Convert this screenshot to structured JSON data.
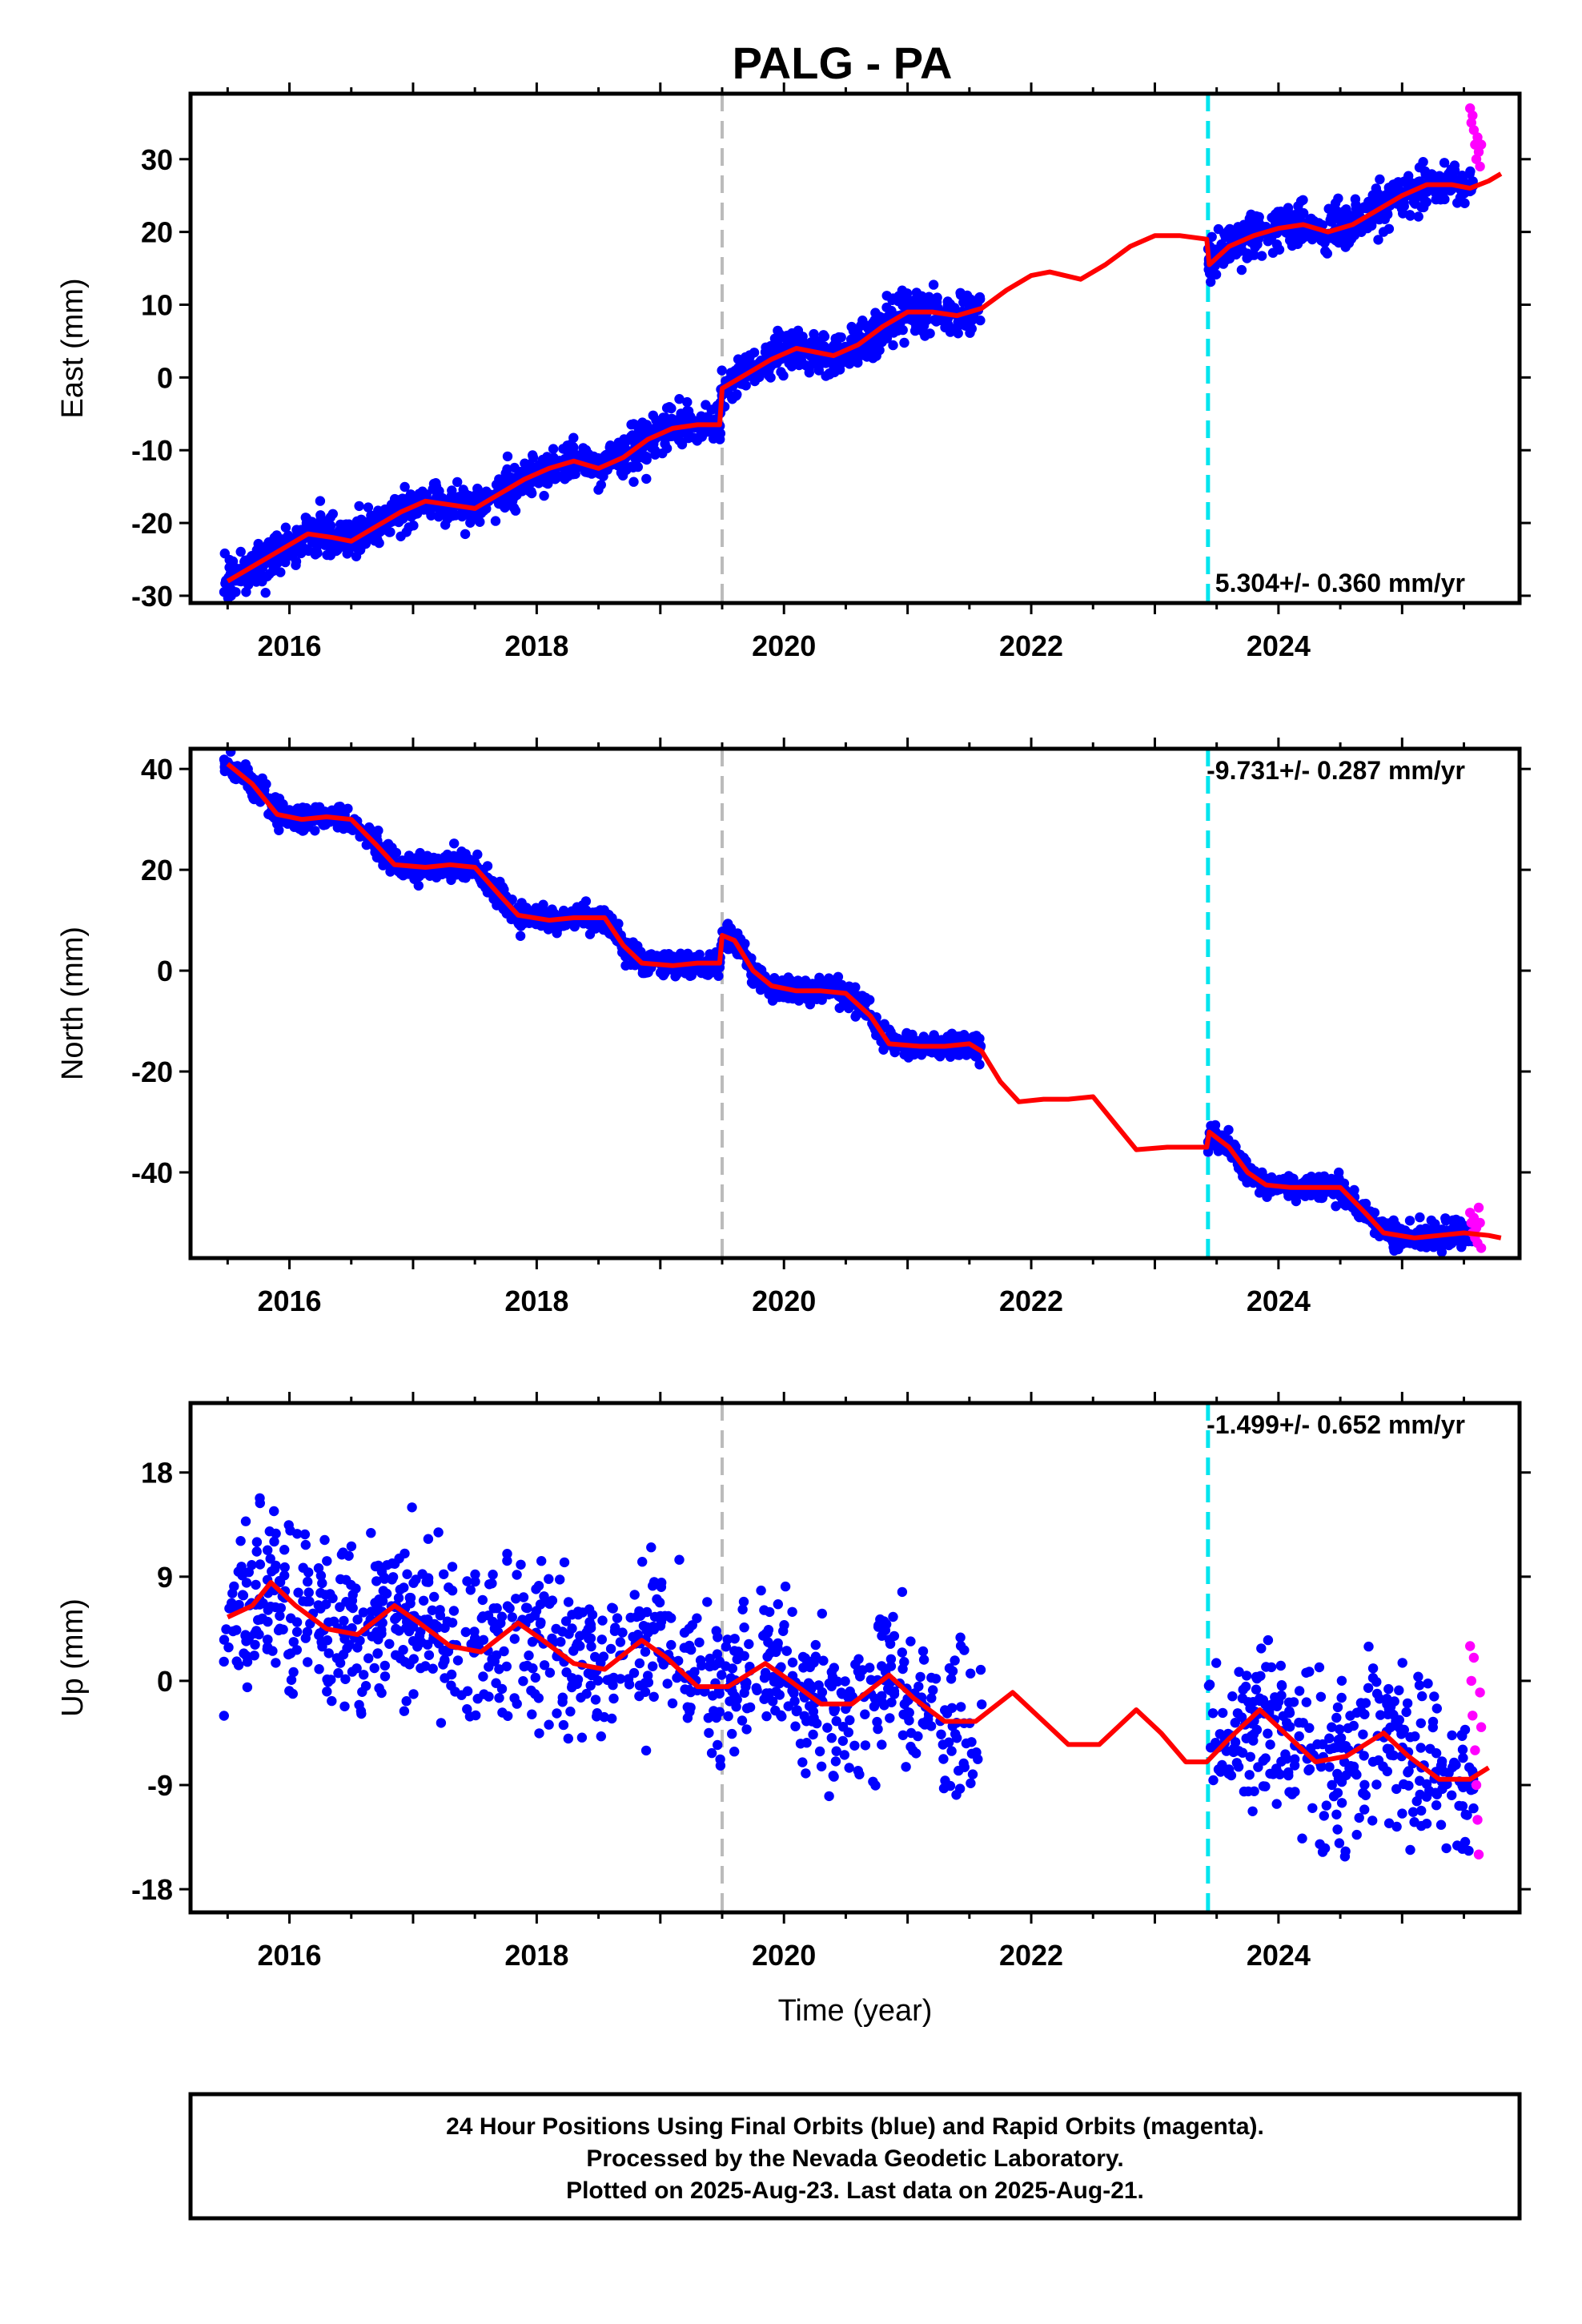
{
  "title": "PALG - PA",
  "footer": {
    "line1": "24 Hour Positions Using Final Orbits (blue) and Rapid Orbits (magenta).",
    "line2": "Processed by the Nevada Geodetic Laboratory.",
    "line3": "Plotted on 2025-Aug-23. Last data on 2025-Aug-21."
  },
  "colors": {
    "final_orbits": "#0000ff",
    "rapid_orbits": "#ff00ff",
    "model_fit": "#ff0000",
    "equipment_change": "#bbbbbb",
    "offset_event": "#00e5ee"
  },
  "chart_data": [
    {
      "type": "scatter",
      "panel": "east",
      "ylabel": "East (mm)",
      "xlabel": "",
      "xlim": [
        2015.2,
        2025.95
      ],
      "ylim": [
        -31,
        39
      ],
      "xticks": [
        2016,
        2018,
        2020,
        2022,
        2024
      ],
      "yticks": [
        -30,
        -20,
        -10,
        0,
        10,
        20,
        30
      ],
      "vlines": [
        {
          "x": 2019.5,
          "style": "gray-dashed"
        },
        {
          "x": 2023.43,
          "style": "cyan-dashed"
        }
      ],
      "rate_label": "5.304+/- 0.360 mm/yr",
      "rate_position": "bottom-right",
      "data_gap": [
        2021.6,
        2023.43
      ],
      "model": [
        [
          2015.5,
          -28
        ],
        [
          2015.75,
          -25.5
        ],
        [
          2016.0,
          -23
        ],
        [
          2016.15,
          -21.5
        ],
        [
          2016.35,
          -22
        ],
        [
          2016.5,
          -22.5
        ],
        [
          2016.7,
          -20.5
        ],
        [
          2016.9,
          -18.5
        ],
        [
          2017.1,
          -17
        ],
        [
          2017.3,
          -17.5
        ],
        [
          2017.5,
          -18
        ],
        [
          2017.7,
          -16
        ],
        [
          2017.9,
          -14
        ],
        [
          2018.1,
          -12.5
        ],
        [
          2018.3,
          -11.5
        ],
        [
          2018.5,
          -12.5
        ],
        [
          2018.7,
          -11
        ],
        [
          2018.9,
          -8.5
        ],
        [
          2019.1,
          -7
        ],
        [
          2019.3,
          -6.5
        ],
        [
          2019.48,
          -6.5
        ],
        [
          2019.5,
          -1.5
        ],
        [
          2019.7,
          0.5
        ],
        [
          2019.9,
          2.5
        ],
        [
          2020.1,
          4
        ],
        [
          2020.25,
          3.5
        ],
        [
          2020.4,
          3
        ],
        [
          2020.6,
          4.5
        ],
        [
          2020.8,
          7
        ],
        [
          2021.0,
          9
        ],
        [
          2021.2,
          9
        ],
        [
          2021.4,
          8.5
        ],
        [
          2021.6,
          9.5
        ],
        [
          2021.8,
          12
        ],
        [
          2022.0,
          14
        ],
        [
          2022.15,
          14.5
        ],
        [
          2022.4,
          13.5
        ],
        [
          2022.6,
          15.5
        ],
        [
          2022.8,
          18
        ],
        [
          2023.0,
          19.5
        ],
        [
          2023.2,
          19.5
        ],
        [
          2023.42,
          19
        ],
        [
          2023.44,
          15.5
        ],
        [
          2023.6,
          18
        ],
        [
          2023.8,
          19.5
        ],
        [
          2024.0,
          20.5
        ],
        [
          2024.2,
          21
        ],
        [
          2024.4,
          20
        ],
        [
          2024.6,
          21
        ],
        [
          2024.8,
          23
        ],
        [
          2025.0,
          25
        ],
        [
          2025.2,
          26.5
        ],
        [
          2025.4,
          26.5
        ],
        [
          2025.55,
          26
        ],
        [
          2025.7,
          27
        ],
        [
          2025.8,
          28
        ]
      ],
      "rapid_points": [
        [
          2025.55,
          37
        ],
        [
          2025.56,
          35
        ],
        [
          2025.57,
          36
        ],
        [
          2025.58,
          34
        ],
        [
          2025.59,
          32
        ],
        [
          2025.6,
          30
        ],
        [
          2025.61,
          33
        ],
        [
          2025.62,
          31
        ],
        [
          2025.63,
          29
        ],
        [
          2025.64,
          32
        ]
      ]
    },
    {
      "type": "scatter",
      "panel": "north",
      "ylabel": "North (mm)",
      "xlabel": "",
      "xlim": [
        2015.2,
        2025.95
      ],
      "ylim": [
        -57,
        44
      ],
      "xticks": [
        2016,
        2018,
        2020,
        2022,
        2024
      ],
      "yticks": [
        -40,
        -20,
        0,
        20,
        40
      ],
      "vlines": [
        {
          "x": 2019.5,
          "style": "gray-dashed"
        },
        {
          "x": 2023.43,
          "style": "cyan-dashed"
        }
      ],
      "rate_label": "-9.731+/- 0.287 mm/yr",
      "rate_position": "top-right",
      "data_gap": [
        2021.6,
        2023.43
      ],
      "model": [
        [
          2015.5,
          41
        ],
        [
          2015.7,
          37
        ],
        [
          2015.9,
          31
        ],
        [
          2016.1,
          30
        ],
        [
          2016.3,
          30.5
        ],
        [
          2016.5,
          30
        ],
        [
          2016.7,
          25
        ],
        [
          2016.85,
          21
        ],
        [
          2017.1,
          20.5
        ],
        [
          2017.3,
          21
        ],
        [
          2017.5,
          20.5
        ],
        [
          2017.7,
          15
        ],
        [
          2017.85,
          11
        ],
        [
          2018.1,
          10
        ],
        [
          2018.3,
          10.5
        ],
        [
          2018.55,
          10.5
        ],
        [
          2018.7,
          5
        ],
        [
          2018.85,
          1.5
        ],
        [
          2019.1,
          1
        ],
        [
          2019.3,
          1.5
        ],
        [
          2019.48,
          1.5
        ],
        [
          2019.5,
          7
        ],
        [
          2019.6,
          6
        ],
        [
          2019.75,
          0
        ],
        [
          2019.9,
          -3
        ],
        [
          2020.1,
          -4
        ],
        [
          2020.3,
          -4
        ],
        [
          2020.5,
          -4.5
        ],
        [
          2020.7,
          -9
        ],
        [
          2020.85,
          -14.5
        ],
        [
          2021.1,
          -15
        ],
        [
          2021.3,
          -15
        ],
        [
          2021.5,
          -14.5
        ],
        [
          2021.6,
          -16
        ],
        [
          2021.75,
          -22
        ],
        [
          2021.9,
          -26
        ],
        [
          2022.1,
          -25.5
        ],
        [
          2022.3,
          -25.5
        ],
        [
          2022.5,
          -25
        ],
        [
          2022.7,
          -31
        ],
        [
          2022.85,
          -35.5
        ],
        [
          2023.1,
          -35
        ],
        [
          2023.3,
          -35
        ],
        [
          2023.42,
          -35
        ],
        [
          2023.44,
          -32
        ],
        [
          2023.6,
          -35
        ],
        [
          2023.75,
          -40
        ],
        [
          2023.9,
          -42.5
        ],
        [
          2024.1,
          -43
        ],
        [
          2024.3,
          -43
        ],
        [
          2024.5,
          -43
        ],
        [
          2024.7,
          -48
        ],
        [
          2024.85,
          -52
        ],
        [
          2025.1,
          -53
        ],
        [
          2025.3,
          -52.5
        ],
        [
          2025.5,
          -52
        ],
        [
          2025.7,
          -52.5
        ],
        [
          2025.8,
          -53
        ]
      ],
      "rapid_points": [
        [
          2025.55,
          -48
        ],
        [
          2025.56,
          -50
        ],
        [
          2025.57,
          -52
        ],
        [
          2025.58,
          -49
        ],
        [
          2025.59,
          -53
        ],
        [
          2025.6,
          -51
        ],
        [
          2025.61,
          -54
        ],
        [
          2025.62,
          -47
        ],
        [
          2025.63,
          -50
        ],
        [
          2025.64,
          -55
        ]
      ]
    },
    {
      "type": "scatter",
      "panel": "up",
      "ylabel": "Up (mm)",
      "xlabel": "Time (year)",
      "xlim": [
        2015.2,
        2025.95
      ],
      "ylim": [
        -20,
        24
      ],
      "xticks": [
        2016,
        2018,
        2020,
        2022,
        2024
      ],
      "yticks": [
        -18,
        -9,
        0,
        9,
        18
      ],
      "vlines": [
        {
          "x": 2019.5,
          "style": "gray-dashed"
        },
        {
          "x": 2023.43,
          "style": "cyan-dashed"
        }
      ],
      "rate_label": "-1.499+/- 0.652 mm/yr",
      "rate_position": "top-right",
      "data_gap": [
        2021.6,
        2023.43
      ],
      "model": [
        [
          2015.5,
          5.5
        ],
        [
          2015.7,
          6.5
        ],
        [
          2015.85,
          8.5
        ],
        [
          2016.05,
          6.5
        ],
        [
          2016.3,
          4.5
        ],
        [
          2016.55,
          4
        ],
        [
          2016.85,
          6.5
        ],
        [
          2017.05,
          5
        ],
        [
          2017.3,
          3
        ],
        [
          2017.55,
          2.5
        ],
        [
          2017.85,
          5
        ],
        [
          2018.05,
          3.5
        ],
        [
          2018.3,
          1.5
        ],
        [
          2018.55,
          1
        ],
        [
          2018.85,
          3.5
        ],
        [
          2019.05,
          2
        ],
        [
          2019.3,
          -0.5
        ],
        [
          2019.55,
          -0.5
        ],
        [
          2019.85,
          1.5
        ],
        [
          2020.05,
          0
        ],
        [
          2020.3,
          -2
        ],
        [
          2020.55,
          -2
        ],
        [
          2020.85,
          0.5
        ],
        [
          2021.05,
          -1.5
        ],
        [
          2021.3,
          -3.5
        ],
        [
          2021.55,
          -3.5
        ],
        [
          2021.85,
          -1
        ],
        [
          2022.05,
          -3
        ],
        [
          2022.3,
          -5.5
        ],
        [
          2022.55,
          -5.5
        ],
        [
          2022.85,
          -2.5
        ],
        [
          2023.05,
          -4.5
        ],
        [
          2023.25,
          -7
        ],
        [
          2023.42,
          -7
        ],
        [
          2023.6,
          -5
        ],
        [
          2023.85,
          -2.5
        ],
        [
          2024.05,
          -4.5
        ],
        [
          2024.3,
          -7
        ],
        [
          2024.55,
          -6.5
        ],
        [
          2024.85,
          -4.5
        ],
        [
          2025.05,
          -6.5
        ],
        [
          2025.3,
          -8.5
        ],
        [
          2025.55,
          -8.5
        ],
        [
          2025.7,
          -7.5
        ]
      ],
      "rapid_points": [
        [
          2025.55,
          3
        ],
        [
          2025.56,
          0
        ],
        [
          2025.57,
          -3
        ],
        [
          2025.58,
          2
        ],
        [
          2025.59,
          -6
        ],
        [
          2025.6,
          -9
        ],
        [
          2025.61,
          -12
        ],
        [
          2025.62,
          -15
        ],
        [
          2025.63,
          -1
        ],
        [
          2025.64,
          -4
        ]
      ]
    }
  ]
}
